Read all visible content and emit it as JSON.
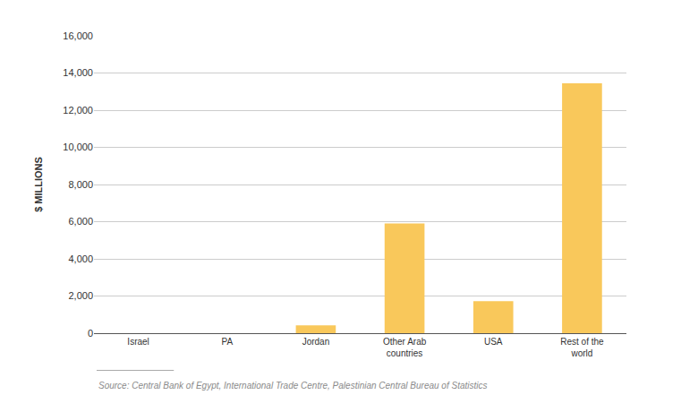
{
  "chart_data": {
    "type": "bar",
    "y_label": "$ MILLIONS",
    "categories": [
      "Israel",
      "PA",
      "Jordan",
      "Other Arab countries",
      "USA",
      "Rest of the world"
    ],
    "values": [
      0,
      0,
      420,
      5900,
      1720,
      13450
    ],
    "color": "#f9c85b",
    "ylim": [
      0,
      16000
    ],
    "yticks": [
      0,
      {
        "value": 2000,
        "label": "2,000"
      },
      {
        "value": 4000,
        "label": "4,000"
      },
      {
        "value": 6000,
        "label": "6,000"
      },
      {
        "value": 8000,
        "label": "8,000"
      },
      {
        "value": 10000,
        "label": "10,000"
      },
      {
        "value": 12000,
        "label": "12,000"
      },
      {
        "value": 14000,
        "label": "14,000"
      },
      {
        "value": 16000,
        "label": "16,000"
      }
    ],
    "grid": true,
    "annotations": [
      "Source: Central Bank of Egypt, International Trade Centre, Palestinian Central Bureau of Statistics"
    ]
  }
}
